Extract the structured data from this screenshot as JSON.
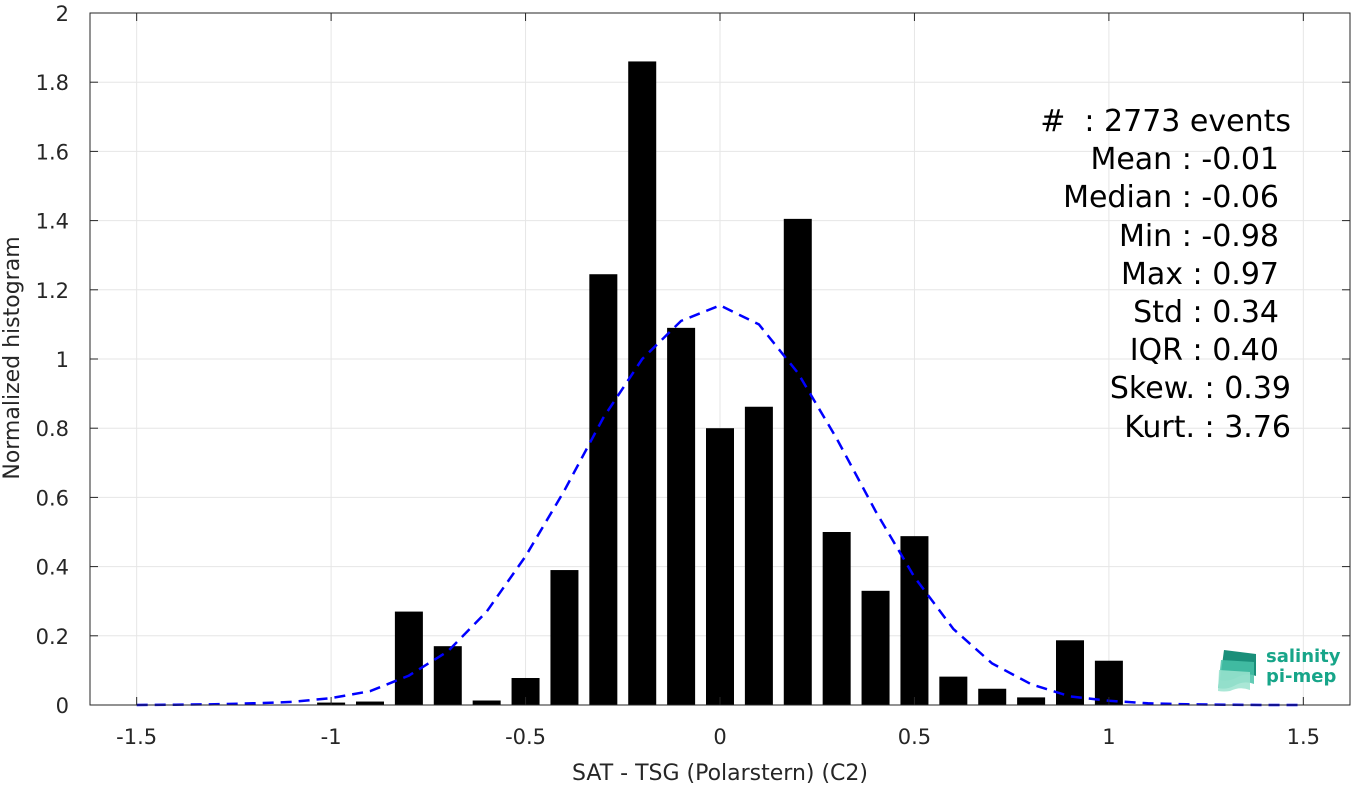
{
  "chart_data": {
    "type": "bar",
    "xlabel": "SAT - TSG (Polarstern) (C2)",
    "ylabel": "Normalized histogram",
    "xlim": [
      -1.62,
      1.62
    ],
    "ylim": [
      0,
      2
    ],
    "xticks": [
      -1.5,
      -1,
      -0.5,
      0,
      0.5,
      1,
      1.5
    ],
    "xtick_labels": [
      "-1.5",
      "-1",
      "-0.5",
      "0",
      "0.5",
      "1",
      "1.5"
    ],
    "yticks": [
      0,
      0.2,
      0.4,
      0.6,
      0.8,
      1,
      1.2,
      1.4,
      1.6,
      1.8,
      2
    ],
    "ytick_labels": [
      "0",
      "0.2",
      "0.4",
      "0.6",
      "0.8",
      "1",
      "1.2",
      "1.4",
      "1.6",
      "1.8",
      "2"
    ],
    "grid": true,
    "bar_width": 0.072,
    "bars": {
      "color": "#000000",
      "x": [
        -1.0,
        -0.9,
        -0.8,
        -0.7,
        -0.6,
        -0.5,
        -0.4,
        -0.3,
        -0.2,
        -0.1,
        0.0,
        0.1,
        0.2,
        0.3,
        0.4,
        0.5,
        0.6,
        0.7,
        0.8,
        0.9,
        1.0
      ],
      "values": [
        0.007,
        0.01,
        0.27,
        0.17,
        0.013,
        0.078,
        0.39,
        1.245,
        1.86,
        1.09,
        0.8,
        0.862,
        1.405,
        0.5,
        0.33,
        0.488,
        0.082,
        0.047,
        0.022,
        0.187,
        0.128
      ]
    },
    "fit_curve": {
      "color": "#0000ff",
      "style": "dashed",
      "x": [
        -1.5,
        -1.4,
        -1.3,
        -1.2,
        -1.1,
        -1.0,
        -0.9,
        -0.8,
        -0.7,
        -0.6,
        -0.5,
        -0.4,
        -0.3,
        -0.2,
        -0.1,
        0.0,
        0.1,
        0.2,
        0.3,
        0.4,
        0.5,
        0.6,
        0.7,
        0.8,
        0.9,
        1.0,
        1.1,
        1.2,
        1.3,
        1.4,
        1.5
      ],
      "values": [
        0.0,
        0.001,
        0.002,
        0.005,
        0.009,
        0.02,
        0.04,
        0.085,
        0.155,
        0.27,
        0.43,
        0.62,
        0.83,
        1.0,
        1.11,
        1.155,
        1.1,
        0.96,
        0.77,
        0.56,
        0.37,
        0.22,
        0.12,
        0.06,
        0.025,
        0.012,
        0.005,
        0.002,
        0.001,
        0.0,
        0.0
      ]
    }
  },
  "stats": {
    "line1": "#  : 2773 events",
    "line2": "Mean : -0.01",
    "line3": "Median : -0.06",
    "line4": "Min : -0.98",
    "line5": "Max : 0.97",
    "line6": "Std : 0.34",
    "line7": "IQR : 0.40",
    "line8": "Skew. : 0.39",
    "line9": "Kurt. : 3.76"
  },
  "logo": {
    "line1": "salinity",
    "line2": "pi-mep"
  }
}
